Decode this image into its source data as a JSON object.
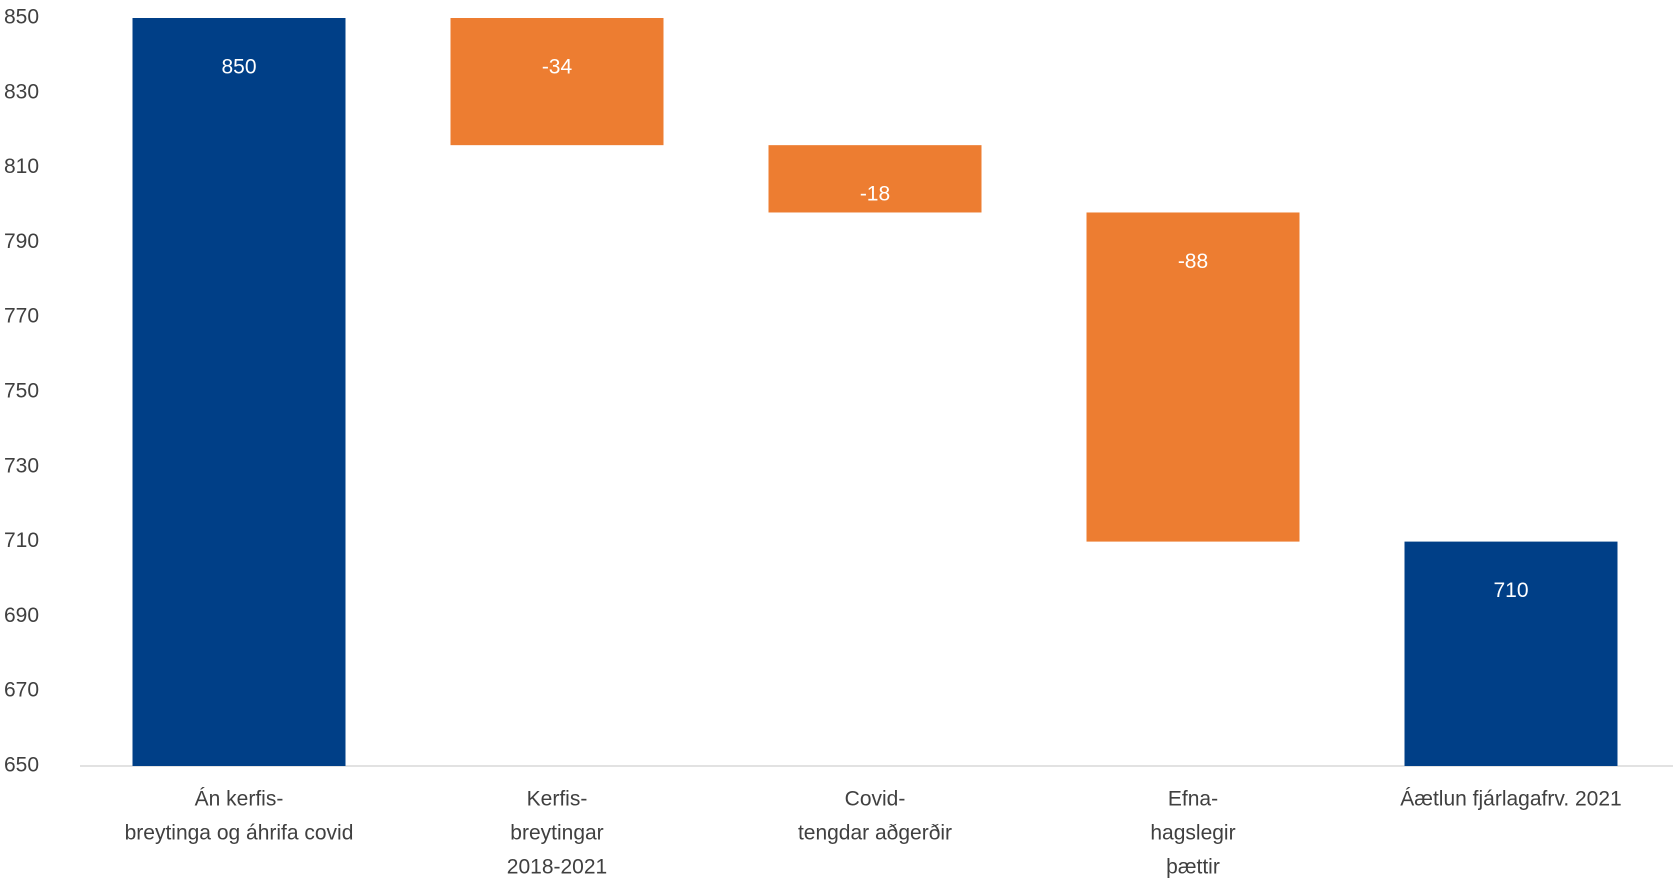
{
  "chart_data": {
    "type": "waterfall",
    "categories": [
      [
        "Án kerfis-",
        "breytinga og áhrifa covid"
      ],
      [
        "Kerfis-",
        "breytingar",
        "2018-2021"
      ],
      [
        "Covid-",
        "tengdar aðgerðir"
      ],
      [
        "Efna-",
        "hagslegir",
        "þættir"
      ],
      [
        "Áætlun fjárlagafrv. 2021"
      ]
    ],
    "values": [
      850,
      -34,
      -18,
      -88,
      710
    ],
    "is_total": [
      true,
      false,
      false,
      false,
      true
    ],
    "total_color": "#003f87",
    "change_color": "#ed7d31",
    "ylim": [
      650,
      850
    ],
    "yticks": [
      650,
      670,
      690,
      710,
      730,
      750,
      770,
      790,
      810,
      830,
      850
    ],
    "grid": false
  }
}
